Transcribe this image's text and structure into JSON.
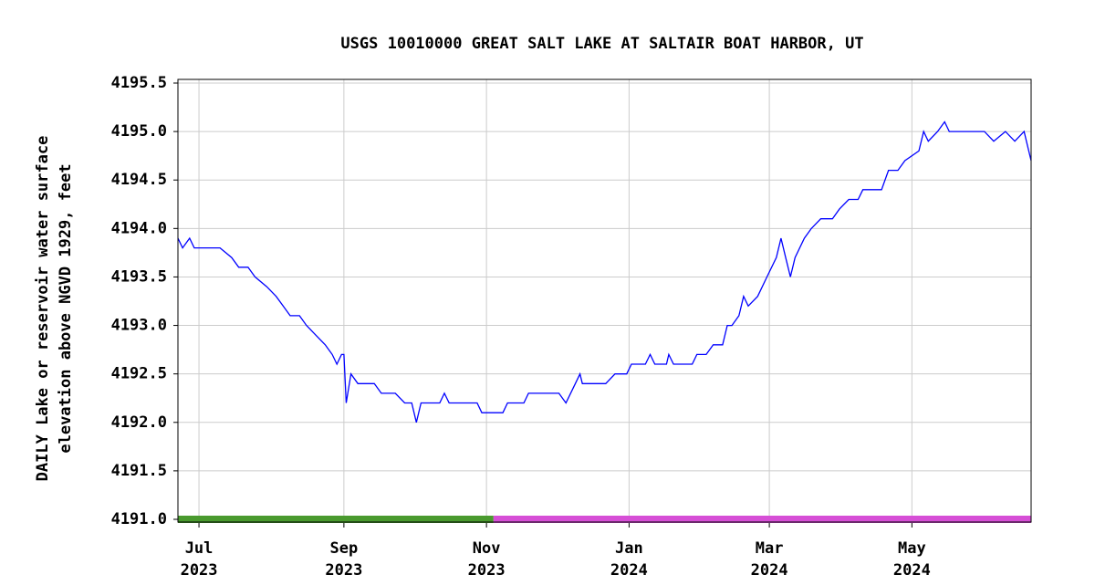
{
  "chart_data": {
    "type": "line",
    "title": "USGS 10010000 GREAT SALT LAKE AT SALTAIR BOAT HARBOR, UT",
    "ylabel": [
      "DAILY Lake or reservoir water surface",
      "elevation above NGVD 1929, feet"
    ],
    "xlim": [
      "2023-06-22",
      "2024-06-21"
    ],
    "xticks": [
      {
        "value": "2023-07-01",
        "label": [
          "Jul",
          "2023"
        ]
      },
      {
        "value": "2023-09-01",
        "label": [
          "Sep",
          "2023"
        ]
      },
      {
        "value": "2023-11-01",
        "label": [
          "Nov",
          "2023"
        ]
      },
      {
        "value": "2024-01-01",
        "label": [
          "Jan",
          "2024"
        ]
      },
      {
        "value": "2024-03-01",
        "label": [
          "Mar",
          "2024"
        ]
      },
      {
        "value": "2024-05-01",
        "label": [
          "May",
          "2024"
        ]
      }
    ],
    "ylim": [
      4191,
      4195.5
    ],
    "yticks": [
      {
        "value": 4191,
        "label": "4191.0"
      },
      {
        "value": 4191.5,
        "label": "4191.5"
      },
      {
        "value": 4192,
        "label": "4192.0"
      },
      {
        "value": 4192.5,
        "label": "4192.5"
      },
      {
        "value": 4193,
        "label": "4193.0"
      },
      {
        "value": 4193.5,
        "label": "4193.5"
      },
      {
        "value": 4194,
        "label": "4194.0"
      },
      {
        "value": 4194.5,
        "label": "4194.5"
      },
      {
        "value": 4195,
        "label": "4195.0"
      },
      {
        "value": 4195.5,
        "label": "4195.5"
      }
    ],
    "grid": true,
    "approval_bars": [
      {
        "start": "2023-06-22",
        "end": "2023-11-04",
        "color": "#4a9a2e"
      },
      {
        "start": "2023-11-04",
        "end": "2024-06-21",
        "color": "#d64fd6"
      }
    ],
    "series": [
      {
        "color": "#0000ff",
        "x": [
          "2023-06-22",
          "2023-06-24",
          "2023-06-27",
          "2023-06-29",
          "2023-07-10",
          "2023-07-15",
          "2023-07-18",
          "2023-07-22",
          "2023-07-25",
          "2023-07-30",
          "2023-08-03",
          "2023-08-06",
          "2023-08-09",
          "2023-08-13",
          "2023-08-16",
          "2023-08-20",
          "2023-08-24",
          "2023-08-27",
          "2023-08-29",
          "2023-08-31",
          "2023-09-01",
          "2023-09-02",
          "2023-09-04",
          "2023-09-07",
          "2023-09-14",
          "2023-09-17",
          "2023-09-23",
          "2023-09-27",
          "2023-09-30",
          "2023-10-02",
          "2023-10-04",
          "2023-10-12",
          "2023-10-14",
          "2023-10-16",
          "2023-10-28",
          "2023-10-30",
          "2023-11-08",
          "2023-11-10",
          "2023-11-17",
          "2023-11-19",
          "2023-11-25",
          "2023-12-02",
          "2023-12-05",
          "2023-12-09",
          "2023-12-11",
          "2023-12-12",
          "2023-12-22",
          "2023-12-26",
          "2023-12-31",
          "2024-01-02",
          "2024-01-08",
          "2024-01-10",
          "2024-01-12",
          "2024-01-17",
          "2024-01-18",
          "2024-01-20",
          "2024-01-28",
          "2024-01-30",
          "2024-02-03",
          "2024-02-06",
          "2024-02-10",
          "2024-02-12",
          "2024-02-14",
          "2024-02-17",
          "2024-02-19",
          "2024-02-21",
          "2024-02-25",
          "2024-02-29",
          "2024-03-04",
          "2024-03-06",
          "2024-03-08",
          "2024-03-10",
          "2024-03-12",
          "2024-03-16",
          "2024-03-19",
          "2024-03-23",
          "2024-03-28",
          "2024-03-31",
          "2024-04-04",
          "2024-04-08",
          "2024-04-10",
          "2024-04-18",
          "2024-04-21",
          "2024-04-25",
          "2024-04-28",
          "2024-05-04",
          "2024-05-06",
          "2024-05-08",
          "2024-05-12",
          "2024-05-15",
          "2024-05-17",
          "2024-05-23",
          "2024-06-01",
          "2024-06-05",
          "2024-06-10",
          "2024-06-14",
          "2024-06-18",
          "2024-06-20",
          "2024-06-21"
        ],
        "values": [
          4193.9,
          4193.8,
          4193.9,
          4193.8,
          4193.8,
          4193.7,
          4193.6,
          4193.6,
          4193.5,
          4193.4,
          4193.3,
          4193.2,
          4193.1,
          4193.1,
          4193.0,
          4192.9,
          4192.8,
          4192.7,
          4192.6,
          4192.7,
          4192.7,
          4192.2,
          4192.5,
          4192.4,
          4192.4,
          4192.3,
          4192.3,
          4192.2,
          4192.2,
          4192.0,
          4192.2,
          4192.2,
          4192.3,
          4192.2,
          4192.2,
          4192.1,
          4192.1,
          4192.2,
          4192.2,
          4192.3,
          4192.3,
          4192.3,
          4192.2,
          4192.4,
          4192.5,
          4192.4,
          4192.4,
          4192.5,
          4192.5,
          4192.6,
          4192.6,
          4192.7,
          4192.6,
          4192.6,
          4192.7,
          4192.6,
          4192.6,
          4192.7,
          4192.7,
          4192.8,
          4192.8,
          4193.0,
          4193.0,
          4193.1,
          4193.3,
          4193.2,
          4193.3,
          4193.5,
          4193.7,
          4193.9,
          4193.7,
          4193.5,
          4193.7,
          4193.9,
          4194.0,
          4194.1,
          4194.1,
          4194.2,
          4194.3,
          4194.3,
          4194.4,
          4194.4,
          4194.6,
          4194.6,
          4194.7,
          4194.8,
          4195.0,
          4194.9,
          4195.0,
          4195.1,
          4195.0,
          4195.0,
          4195.0,
          4194.9,
          4195.0,
          4194.9,
          4195.0,
          4194.8,
          4194.7
        ]
      }
    ]
  }
}
